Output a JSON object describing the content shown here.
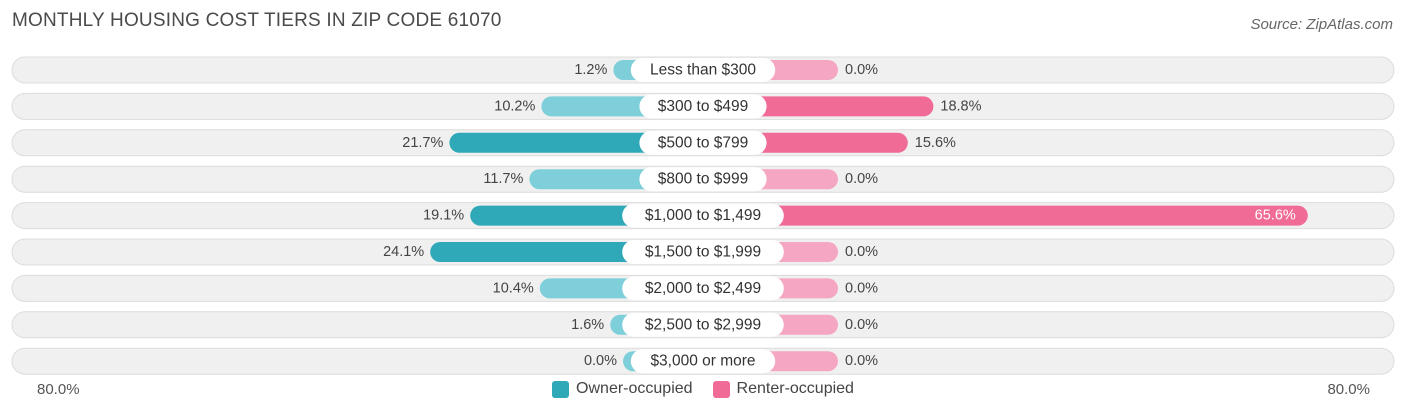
{
  "header": {
    "title": "MONTHLY HOUSING COST TIERS IN ZIP CODE 61070",
    "source": "Source: ZipAtlas.com"
  },
  "axis": {
    "left_label": "80.0%",
    "right_label": "80.0%"
  },
  "legend": {
    "owner_label": "Owner-occupied",
    "renter_label": "Renter-occupied"
  },
  "colors": {
    "owner_strong": "#2fa8b8",
    "owner_light": "#7ecfd9",
    "renter_strong": "#f06b96",
    "renter_light": "#f5a6c2",
    "row_background": "#f0f0f0",
    "row_border": "#dcdcdc"
  },
  "chart_data": {
    "type": "bar",
    "orientation": "diverging-horizontal",
    "title": "MONTHLY HOUSING COST TIERS IN ZIP CODE 61070",
    "xlim": [
      -80,
      80
    ],
    "categories": [
      "Less than $300",
      "$300 to $499",
      "$500 to $799",
      "$800 to $999",
      "$1,000 to $1,499",
      "$1,500 to $1,999",
      "$2,000 to $2,499",
      "$2,500 to $2,999",
      "$3,000 or more"
    ],
    "series": [
      {
        "name": "Owner-occupied",
        "side": "left",
        "values": [
          1.2,
          10.2,
          21.7,
          11.7,
          19.1,
          24.1,
          10.4,
          1.6,
          0.0
        ],
        "labels": [
          "1.2%",
          "10.2%",
          "21.7%",
          "11.7%",
          "19.1%",
          "24.1%",
          "10.4%",
          "1.6%",
          "0.0%"
        ]
      },
      {
        "name": "Renter-occupied",
        "side": "right",
        "values": [
          0.0,
          18.8,
          15.6,
          0.0,
          65.6,
          0.0,
          0.0,
          0.0,
          0.0
        ],
        "labels": [
          "0.0%",
          "18.8%",
          "15.6%",
          "0.0%",
          "65.6%",
          "0.0%",
          "0.0%",
          "0.0%",
          "0.0%"
        ]
      }
    ]
  }
}
